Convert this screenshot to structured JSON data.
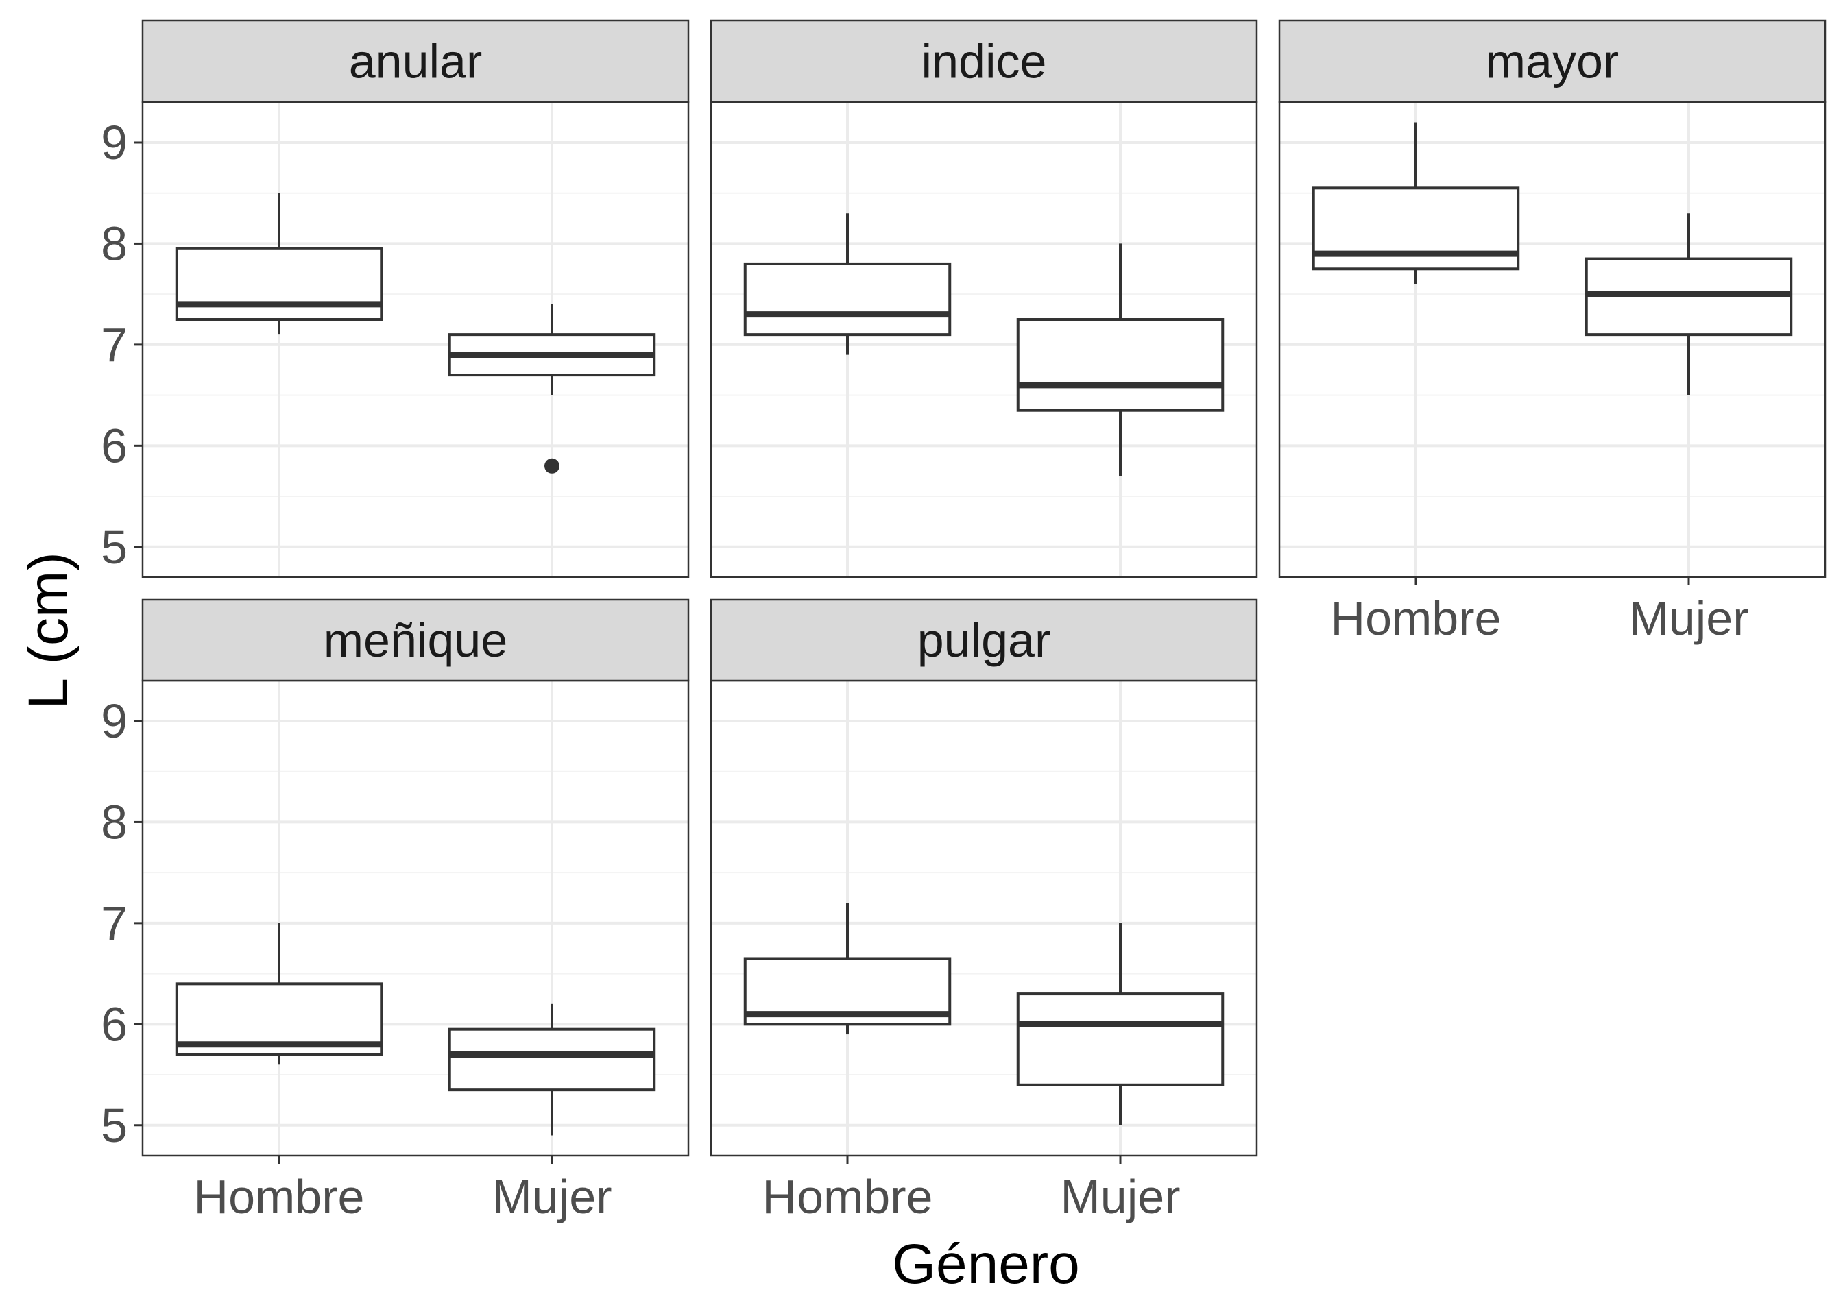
{
  "chart_data": {
    "type": "boxplot",
    "xlabel": "Género",
    "ylabel": "L (cm)",
    "categories": [
      "Hombre",
      "Mujer"
    ],
    "ylim": [
      4.7,
      9.4
    ],
    "yticks": [
      5,
      6,
      7,
      8,
      9
    ],
    "grid": true,
    "layout": "facet grid, 3 columns x 2 rows",
    "facets": [
      {
        "title": "anular",
        "boxes": [
          {
            "category": "Hombre",
            "min": 7.1,
            "q1": 7.25,
            "median": 7.4,
            "q3": 7.95,
            "max": 8.5,
            "outliers": []
          },
          {
            "category": "Mujer",
            "min": 6.5,
            "q1": 6.7,
            "median": 6.9,
            "q3": 7.1,
            "max": 7.4,
            "outliers": [
              5.8
            ]
          }
        ]
      },
      {
        "title": "indice",
        "boxes": [
          {
            "category": "Hombre",
            "min": 6.9,
            "q1": 7.1,
            "median": 7.3,
            "q3": 7.8,
            "max": 8.3,
            "outliers": []
          },
          {
            "category": "Mujer",
            "min": 5.7,
            "q1": 6.35,
            "median": 6.6,
            "q3": 7.25,
            "max": 8.0,
            "outliers": []
          }
        ]
      },
      {
        "title": "mayor",
        "boxes": [
          {
            "category": "Hombre",
            "min": 7.6,
            "q1": 7.75,
            "median": 7.9,
            "q3": 8.55,
            "max": 9.2,
            "outliers": []
          },
          {
            "category": "Mujer",
            "min": 6.5,
            "q1": 7.1,
            "median": 7.5,
            "q3": 7.85,
            "max": 8.3,
            "outliers": []
          }
        ]
      },
      {
        "title": "meñique",
        "boxes": [
          {
            "category": "Hombre",
            "min": 5.6,
            "q1": 5.7,
            "median": 5.8,
            "q3": 6.4,
            "max": 7.0,
            "outliers": []
          },
          {
            "category": "Mujer",
            "min": 4.9,
            "q1": 5.35,
            "median": 5.7,
            "q3": 5.95,
            "max": 6.2,
            "outliers": []
          }
        ]
      },
      {
        "title": "pulgar",
        "boxes": [
          {
            "category": "Hombre",
            "min": 5.9,
            "q1": 6.0,
            "median": 6.1,
            "q3": 6.65,
            "max": 7.2,
            "outliers": []
          },
          {
            "category": "Mujer",
            "min": 5.0,
            "q1": 5.4,
            "median": 6.0,
            "q3": 6.3,
            "max": 7.0,
            "outliers": []
          }
        ]
      }
    ]
  },
  "colors": {
    "strip_fill": "#d9d9d9",
    "panel_border": "#333333",
    "box_stroke": "#333333",
    "grid_major": "#ebebeb",
    "grid_minor": "#f3f3f3",
    "tick_text": "#4d4d4d",
    "title_text": "#000000",
    "strip_text": "#1a1a1a"
  }
}
